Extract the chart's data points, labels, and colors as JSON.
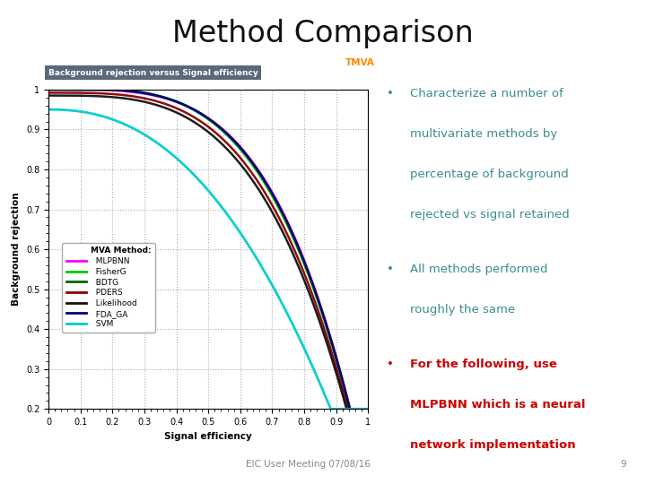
{
  "title": "Method Comparison",
  "title_color": "#111111",
  "title_bg_color": "#35C8D8",
  "slide_bg_color": "#FFFFFF",
  "footer_text": "EIC User Meeting 07/08/16",
  "footer_page": "9",
  "plot_title": "Background rejection versus Signal efficiency",
  "plot_title_bg": "#5A6878",
  "plot_title_color": "#FFFFFF",
  "xlabel": "Signal efficiency",
  "ylabel": "Background rejection",
  "bullet1_lines": [
    "Characterize a number of",
    "multivariate methods by",
    "percentage of background",
    "rejected vs signal retained"
  ],
  "bullet1_color": "#3A8C8C",
  "bullet2_lines": [
    "All methods performed",
    "roughly the same"
  ],
  "bullet2_color": "#3A8C8C",
  "bullet3_lines": [
    "For the following, use",
    "MLPBNN which is a neural",
    "network implementation"
  ],
  "bullet3_color": "#CC0000",
  "methods": [
    "MLPBNN",
    "FisherG",
    "BDTG",
    "PDERS",
    "Likelihood",
    "FDA_GA",
    "SVM"
  ],
  "method_colors": [
    "#FF00FF",
    "#00CC00",
    "#006600",
    "#8B0000",
    "#111111",
    "#000080",
    "#00CCCC"
  ],
  "plot_bg": "#E8E8E8",
  "tmva_color": "#FF8800"
}
